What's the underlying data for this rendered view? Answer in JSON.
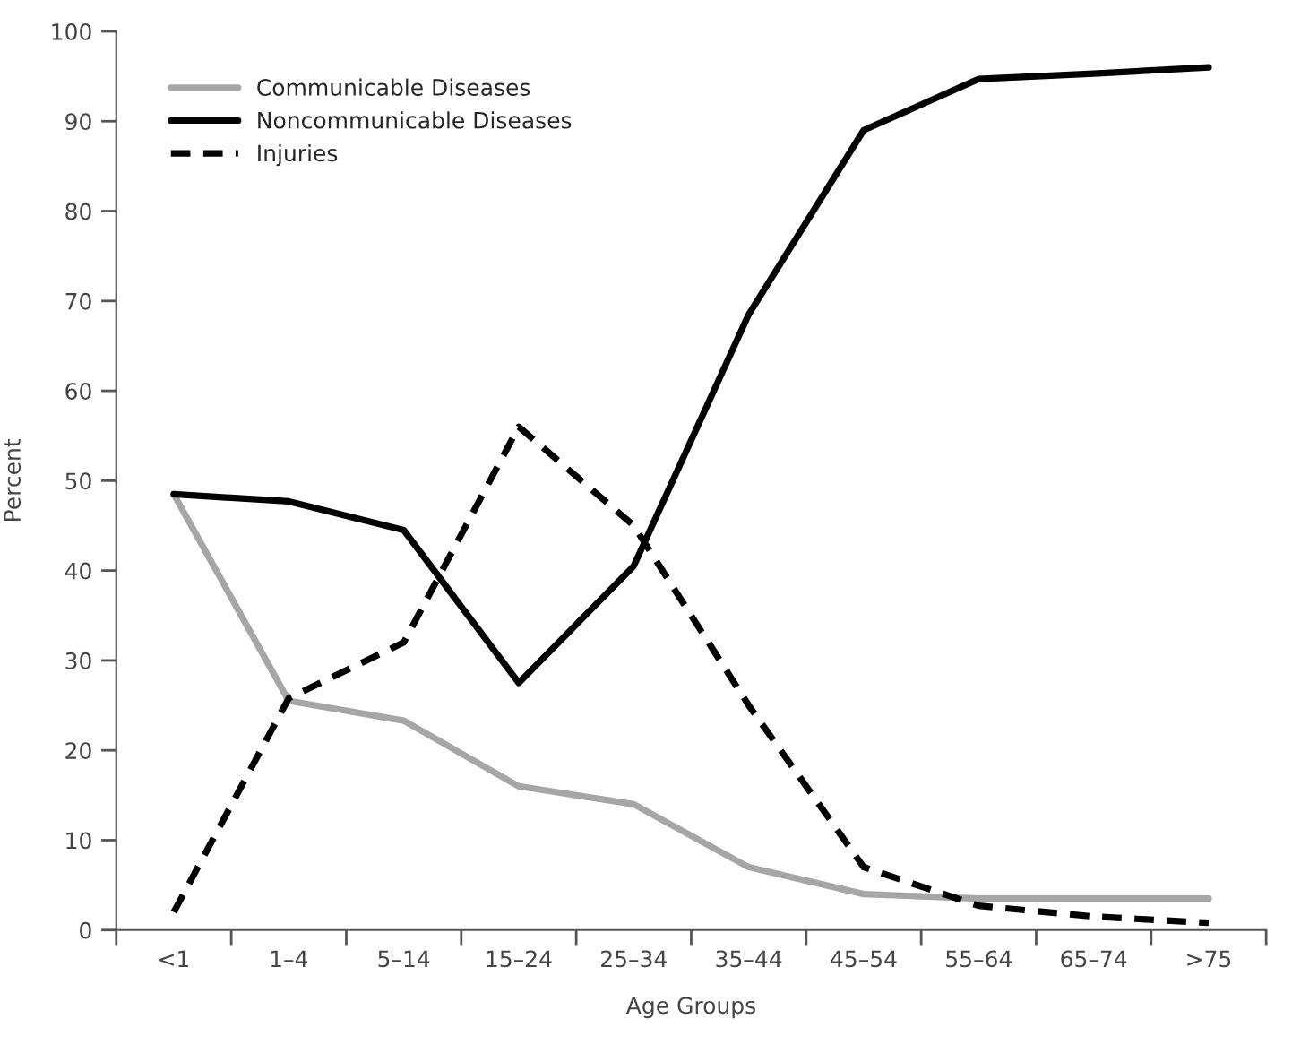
{
  "chart_data": {
    "type": "line",
    "xlabel": "Age Groups",
    "ylabel": "Percent",
    "categories": [
      "<1",
      "1–4",
      "5–14",
      "15–24",
      "25–34",
      "35–44",
      "45–54",
      "55–64",
      "65–74",
      ">75"
    ],
    "series": [
      {
        "name": "Communicable Diseases",
        "color": "#a6a6a6",
        "line_style": "solid",
        "values": [
          48.5,
          25.5,
          23.3,
          16,
          14,
          7,
          4,
          3.5,
          3.5,
          3.5
        ]
      },
      {
        "name": "Noncommunicable Diseases",
        "color": "#000000",
        "line_style": "solid",
        "values": [
          48.5,
          47.7,
          44.5,
          27.5,
          40.5,
          68.5,
          89,
          94.7,
          95.3,
          96
        ]
      },
      {
        "name": "Injuries",
        "color": "#000000",
        "line_style": "dashed",
        "values": [
          2,
          25.8,
          32,
          56,
          45,
          25,
          7,
          2.7,
          1.5,
          0.8
        ]
      }
    ],
    "ylim": [
      0,
      100
    ],
    "yticks": [
      0,
      10,
      20,
      30,
      40,
      50,
      60,
      70,
      80,
      90,
      100
    ],
    "grid": false,
    "legend": "top left",
    "marker": "none"
  }
}
